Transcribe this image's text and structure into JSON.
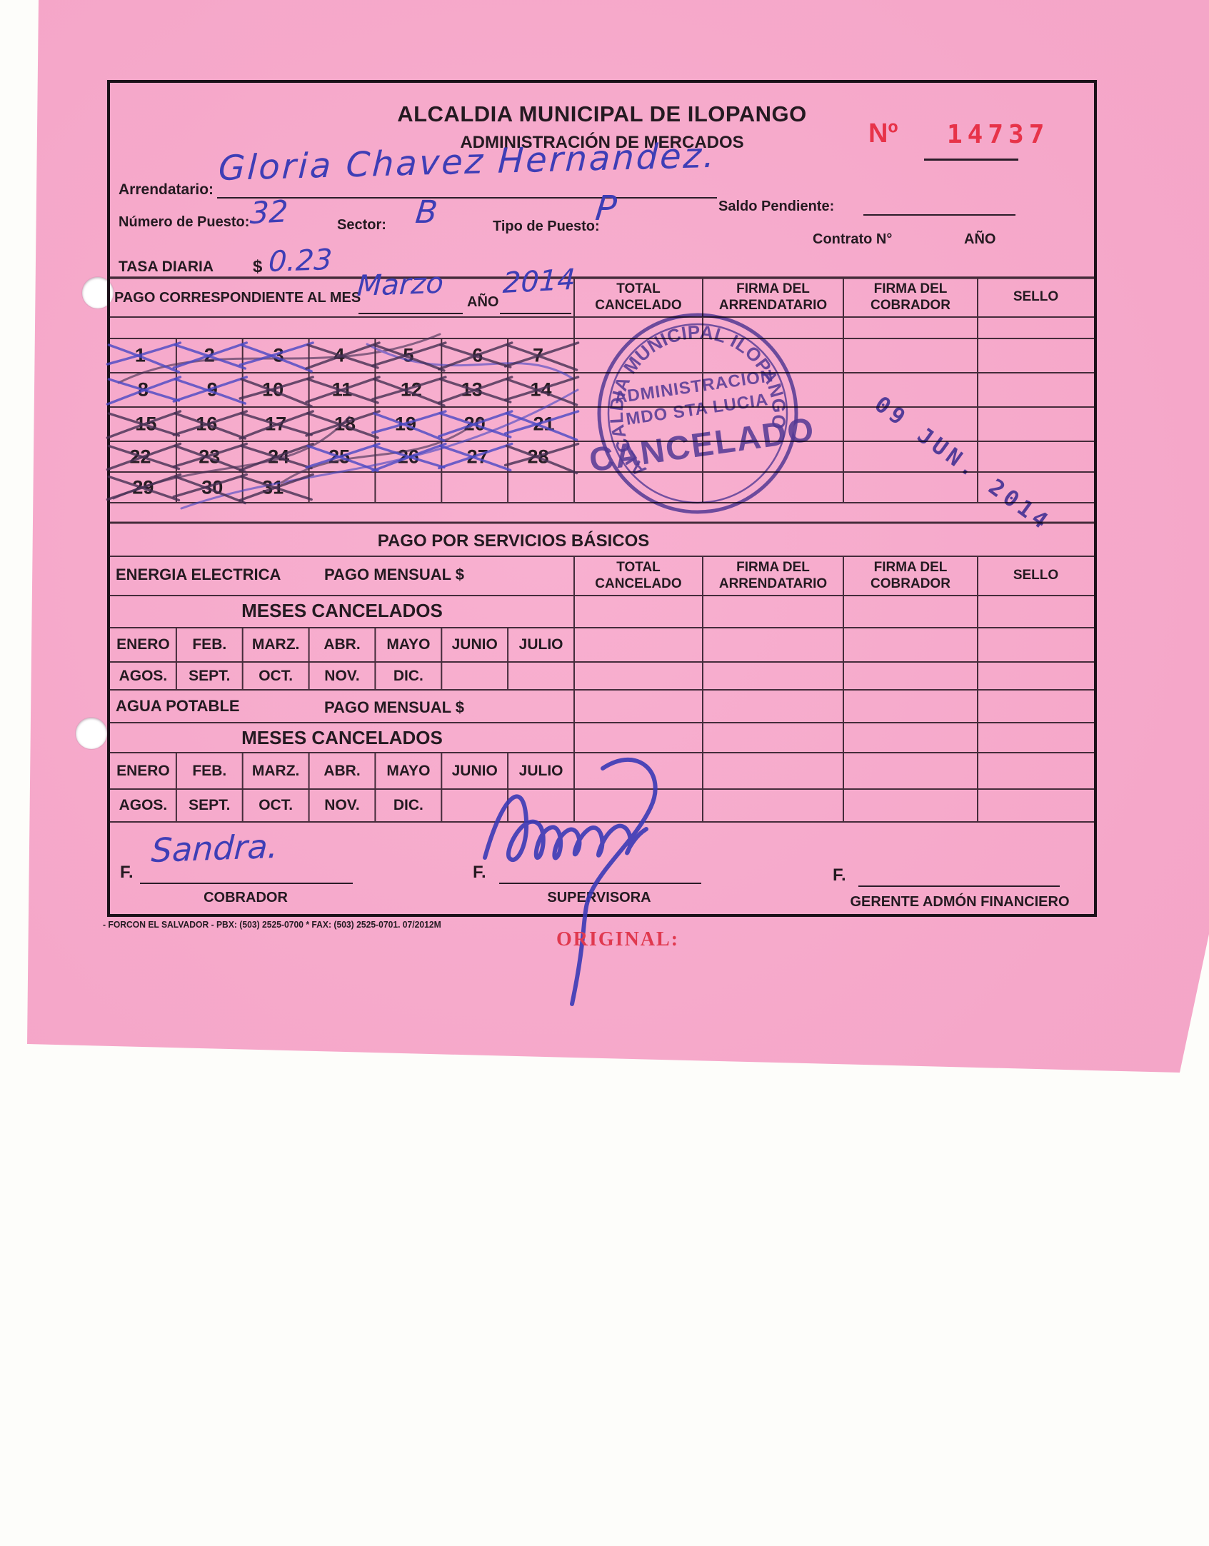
{
  "colors": {
    "paper": "#f5a7c9",
    "ink_blue": "#3e3eb6",
    "stamp_blue": "#4443b4",
    "red": "#e73349"
  },
  "header": {
    "title": "ALCALDIA MUNICIPAL DE ILOPANGO",
    "subtitle": "ADMINISTRACIÓN DE MERCADOS",
    "receipt_no_label": "Nº",
    "receipt_no": "14737"
  },
  "fields": {
    "arrendatario_label": "Arrendatario:",
    "arrendatario_value": "Gloria Chavez Hernandez.",
    "saldo_pendiente_label": "Saldo Pendiente:",
    "numero_puesto_label": "Número de Puesto:",
    "numero_puesto_value": "32",
    "sector_label": "Sector:",
    "sector_value": "B",
    "tipo_puesto_label": "Tipo de Puesto:",
    "tipo_puesto_value": "P",
    "contrato_label": "Contrato N°",
    "ano_label": "AÑO",
    "tasa_diaria_label": "TASA DIARIA",
    "tasa_currency": "$",
    "tasa_value": "0.23"
  },
  "payment_table": {
    "mes_label": "PAGO CORRESPONDIENTE AL MES",
    "mes_value": "Marzo",
    "ano_label": "AÑO",
    "ano_value": "2014",
    "columns": [
      "TOTAL\nCANCELADO",
      "FIRMA DEL\nARRENDATARIO",
      "FIRMA DEL\nCOBRADOR",
      "SELLO"
    ]
  },
  "calendar": {
    "days": [
      1,
      2,
      3,
      4,
      5,
      6,
      7,
      8,
      9,
      10,
      11,
      12,
      13,
      14,
      15,
      16,
      17,
      18,
      19,
      20,
      21,
      22,
      23,
      24,
      25,
      26,
      27,
      28,
      29,
      30,
      31
    ],
    "crossed_days": [
      1,
      2,
      3,
      4,
      5,
      6,
      7,
      8,
      9,
      10,
      11,
      12,
      13,
      14,
      15,
      16,
      17,
      18,
      19,
      20,
      21,
      22,
      23,
      24,
      25,
      26,
      27,
      28,
      29,
      30,
      31
    ]
  },
  "stamp": {
    "ring_text": "ALCALDIA MUNICIPAL ILOPANGO",
    "line1": "ADMINISTRACION",
    "line2": "MDO STA LUCIA",
    "line3": "CANCELADO"
  },
  "date_stamp": "09 JUN. 2014",
  "services": {
    "title": "PAGO POR SERVICIOS BÁSICOS",
    "energia_label": "ENERGIA ELECTRICA",
    "pago_mensual_label": "PAGO MENSUAL $",
    "meses_cancelados_label": "MESES CANCELADOS",
    "agua_label": "AGUA POTABLE",
    "months_row1": [
      "ENERO",
      "FEB.",
      "MARZ.",
      "ABR.",
      "MAYO",
      "JUNIO",
      "JULIO"
    ],
    "months_row2": [
      "AGOS.",
      "SEPT.",
      "OCT.",
      "NOV.",
      "DIC.",
      "",
      ""
    ]
  },
  "signatures": {
    "f_label": "F.",
    "cobrador_value": "Sandra.",
    "cobrador_label": "COBRADOR",
    "supervisora_label": "SUPERVISORA",
    "gerente_label": "GERENTE ADMÓN FINANCIERO"
  },
  "footer": {
    "print_info": "- FORCON EL SALVADOR - PBX: (503) 2525-0700 * FAX: (503) 2525-0701. 07/2012M",
    "copy_label": "ORIGINAL:"
  }
}
